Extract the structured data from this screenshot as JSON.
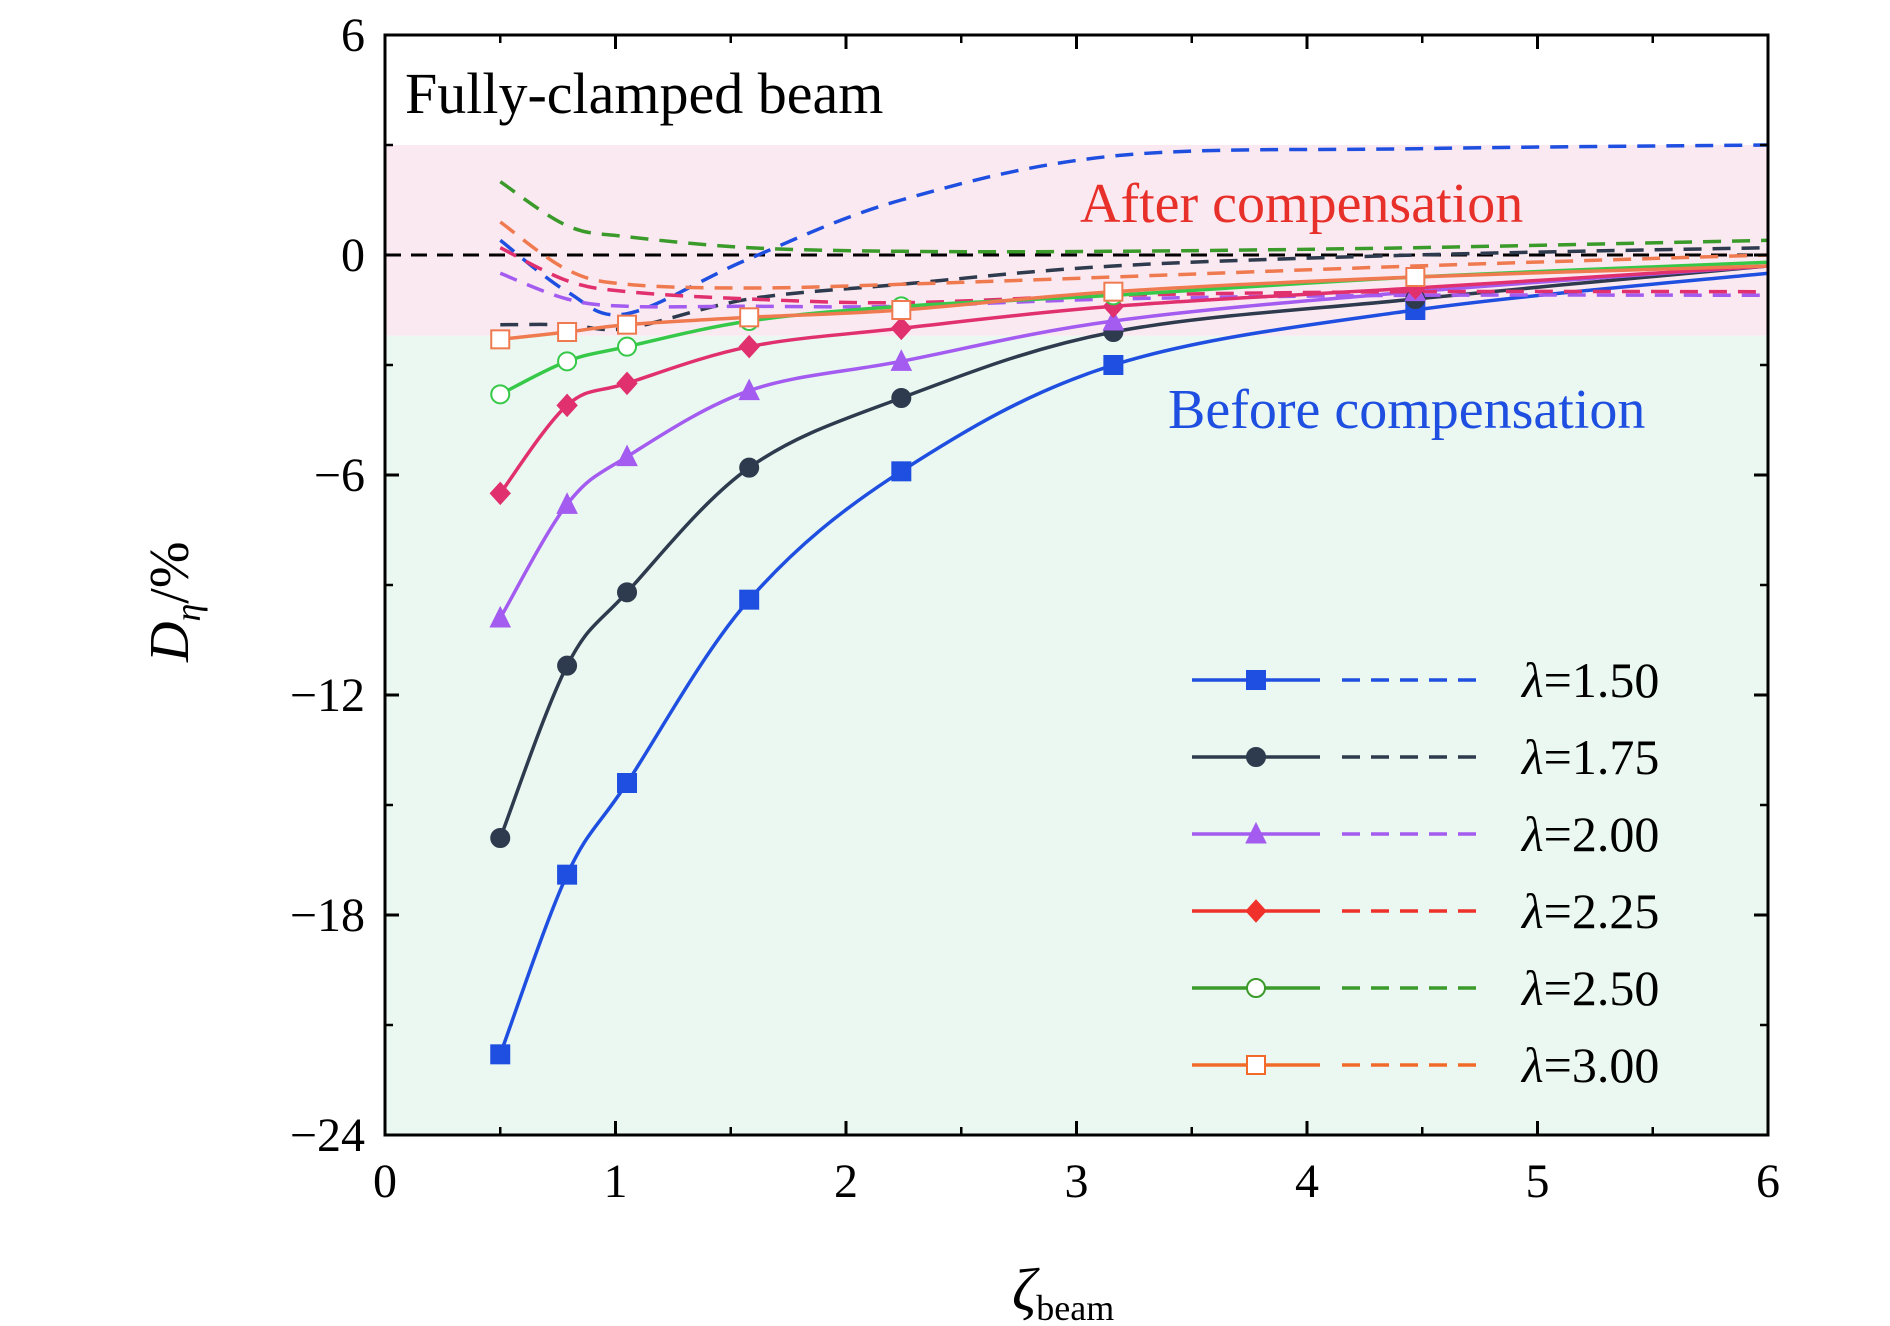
{
  "chart_data": {
    "type": "line",
    "title": "Fully-clamped beam",
    "xlabel": "ζbeam",
    "xlabel_main": "ζ",
    "xlabel_sub": "beam",
    "ylabel": "Dη/%",
    "ylabel_main": "D",
    "ylabel_sub": "η",
    "ylabel_unit": "/%",
    "xlim": [
      0,
      6
    ],
    "ylim": [
      -24,
      6
    ],
    "x_ticks": [
      0,
      1,
      2,
      3,
      4,
      5,
      6
    ],
    "x_tick_labels": [
      "0",
      "1",
      "2",
      "3",
      "4",
      "5",
      "6"
    ],
    "y_ticks": [
      -24,
      -18,
      -12,
      -6,
      0,
      6
    ],
    "y_tick_labels": [
      "−24",
      "−18",
      "−12",
      "−6",
      "0",
      "6"
    ],
    "grid": false,
    "legend_position": "bottom-right",
    "regions": [
      {
        "label": "After compensation",
        "y_range": [
          -2.2,
          3
        ],
        "color": "#fbe9f1",
        "text_color": "#e8302b"
      },
      {
        "label": "Before compensation",
        "y_range": [
          -24,
          -2.2
        ],
        "color": "#eaf8f1",
        "text_color": "#1f4fe0"
      }
    ],
    "reference_line": {
      "y": 0,
      "style": "dashed",
      "color": "#000000"
    },
    "x": [
      0.5,
      0.79,
      1.05,
      1.58,
      2.24,
      3.16,
      4.47
    ],
    "series": [
      {
        "name": "λ=1.50",
        "lambda_symbol": "λ",
        "lambda_value": "=1.50",
        "color": "#1f4fe0",
        "marker": "square-filled",
        "before": [
          -21.8,
          -16.9,
          -14.4,
          -9.4,
          -5.9,
          -3.0,
          -1.5
        ],
        "before_end": -0.5,
        "after": [
          0.4,
          -1.0,
          -1.6,
          -0.1,
          1.5,
          2.7,
          2.9
        ],
        "after_end": 3.0
      },
      {
        "name": "λ=1.75",
        "lambda_symbol": "λ",
        "lambda_value": "=1.75",
        "color": "#2e3a4d",
        "marker": "circle-filled",
        "before": [
          -15.9,
          -11.2,
          -9.2,
          -5.8,
          -3.9,
          -2.1,
          -1.2
        ],
        "before_end": -0.3,
        "after": [
          -1.9,
          -1.9,
          -2.0,
          -1.2,
          -0.8,
          -0.3,
          0.0
        ],
        "after_end": 0.2
      },
      {
        "name": "λ=2.00",
        "lambda_symbol": "λ",
        "lambda_value": "=2.00",
        "color": "#a35bf0",
        "marker": "triangle-filled",
        "before": [
          -9.9,
          -6.8,
          -5.5,
          -3.7,
          -2.9,
          -1.8,
          -1.0
        ],
        "before_end": -0.3,
        "after": [
          -0.5,
          -1.2,
          -1.4,
          -1.4,
          -1.4,
          -1.2,
          -1.1
        ],
        "after_end": -1.1
      },
      {
        "name": "λ=2.25",
        "lambda_symbol": "λ",
        "lambda_value": "=2.25",
        "color": "#e0306e",
        "legend_color": "#f0302b",
        "marker": "diamond-filled",
        "before": [
          -6.5,
          -4.1,
          -3.5,
          -2.5,
          -2.0,
          -1.4,
          -0.9
        ],
        "before_end": -0.3,
        "after": [
          0.2,
          -0.7,
          -1.0,
          -1.2,
          -1.3,
          -1.1,
          -1.0
        ],
        "after_end": -1.0
      },
      {
        "name": "λ=2.50",
        "lambda_symbol": "λ",
        "lambda_value": "=2.50",
        "color": "#36c848",
        "legend_color": "#3a9a2a",
        "after_color": "#3a9a2a",
        "marker": "circle-open",
        "before": [
          -3.8,
          -2.9,
          -2.5,
          -1.8,
          -1.4,
          -1.1,
          -0.6
        ],
        "before_end": -0.2,
        "after": [
          2.0,
          0.8,
          0.5,
          0.2,
          0.1,
          0.1,
          0.2
        ],
        "after_end": 0.4
      },
      {
        "name": "λ=3.00",
        "lambda_symbol": "λ",
        "lambda_value": "=3.00",
        "color": "#f07a50",
        "legend_color": "#f26a2a",
        "marker": "square-open",
        "before": [
          -2.3,
          -2.1,
          -1.9,
          -1.7,
          -1.5,
          -1.0,
          -0.6
        ],
        "before_end": -0.3,
        "after": [
          0.9,
          -0.4,
          -0.8,
          -0.9,
          -0.8,
          -0.6,
          -0.3
        ],
        "after_end": 0.0
      }
    ]
  }
}
